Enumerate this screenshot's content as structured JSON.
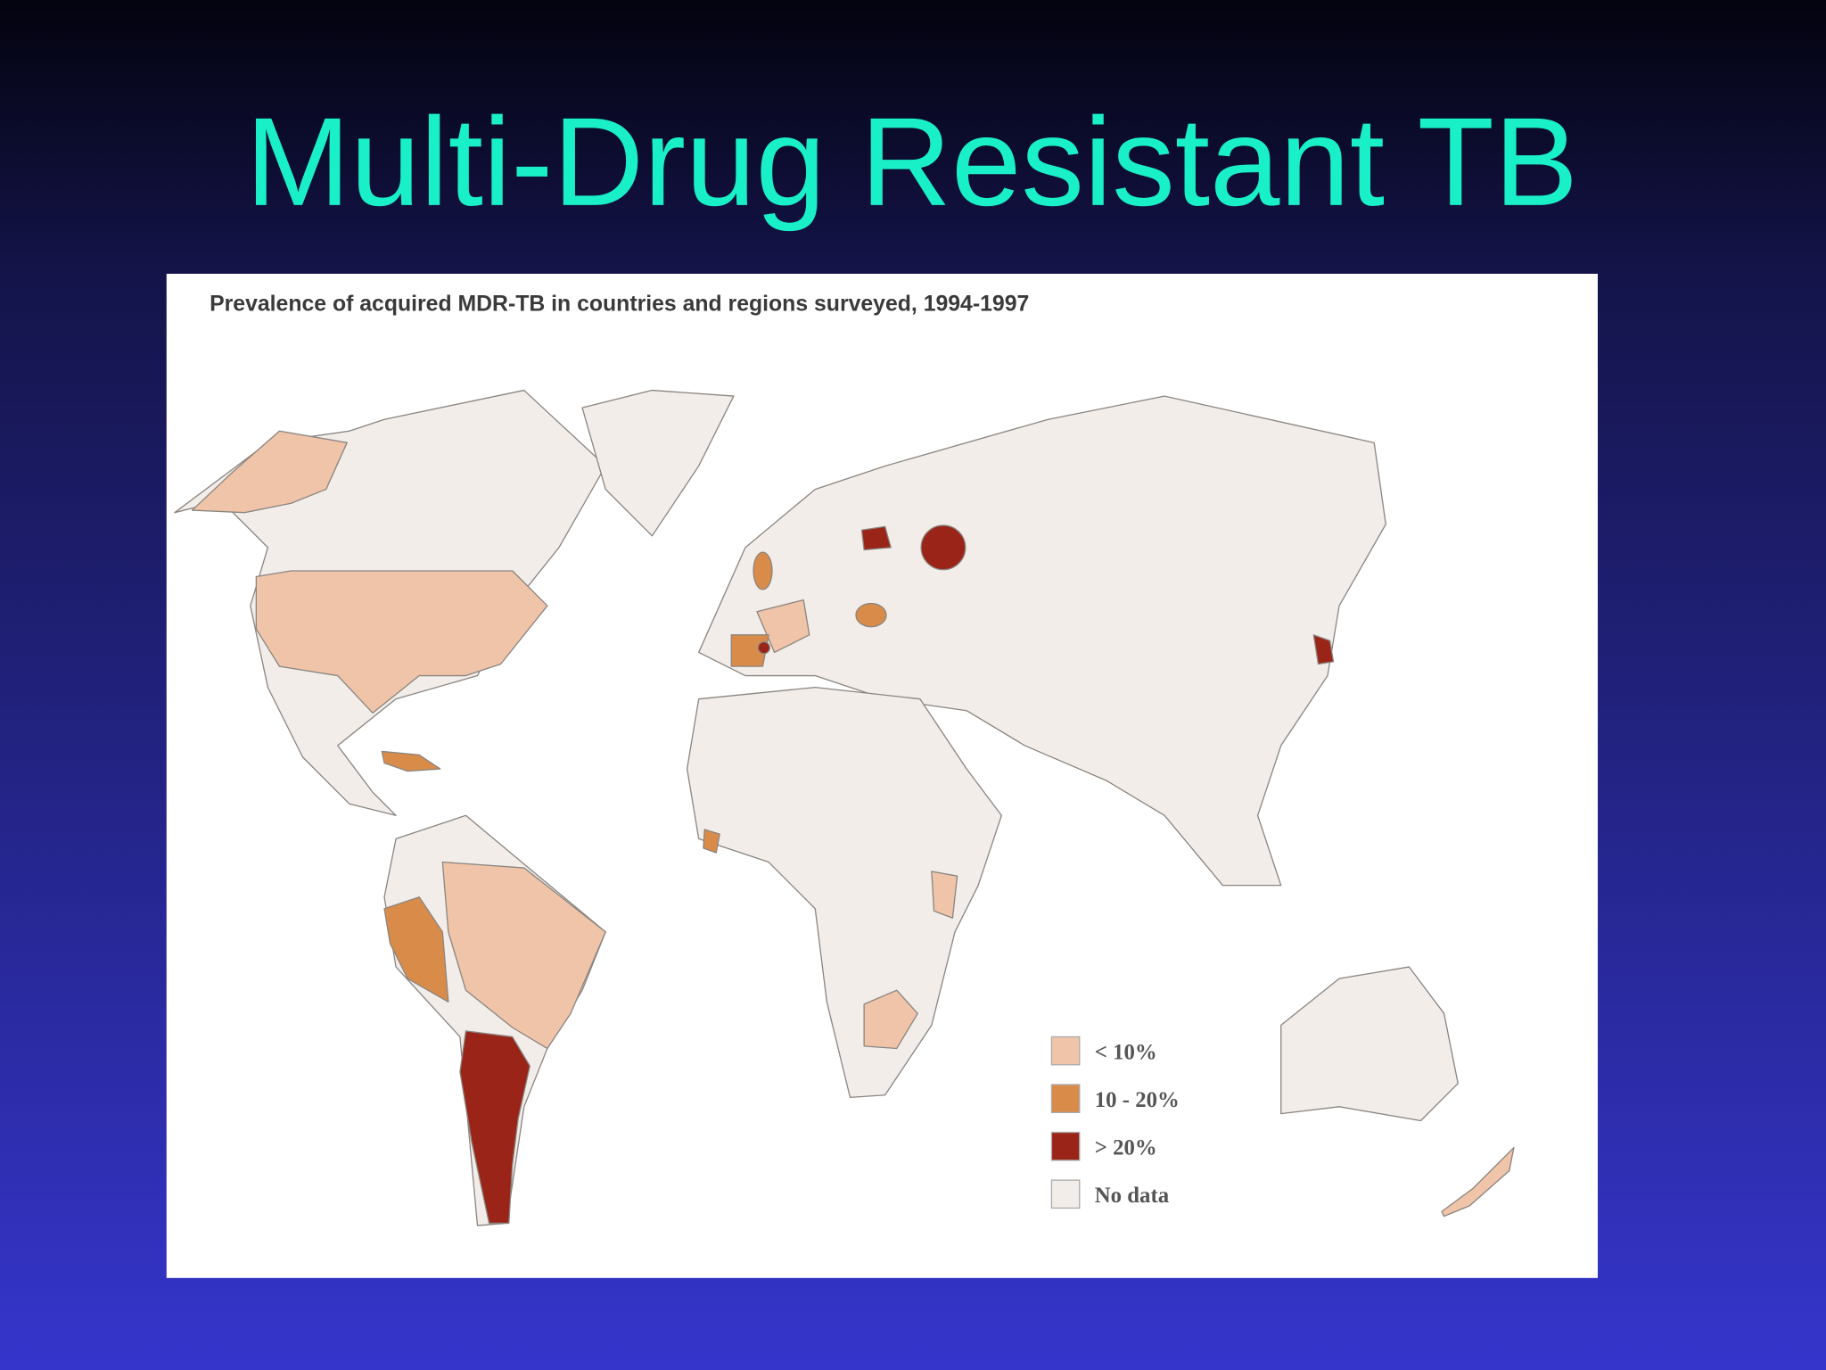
{
  "header": {
    "title": "Multi-Drug Resistant TB"
  },
  "map": {
    "caption": "Prevalence of acquired MDR-TB in countries and regions surveyed, 1994-1997",
    "legend": [
      {
        "label": "< 10%",
        "color": "#f0c4a8"
      },
      {
        "label": "10 - 20%",
        "color": "#d98c4a"
      },
      {
        "label": "> 20%",
        "color": "#9b2418"
      },
      {
        "label": "No data",
        "color": "#f2ede8"
      }
    ]
  }
}
